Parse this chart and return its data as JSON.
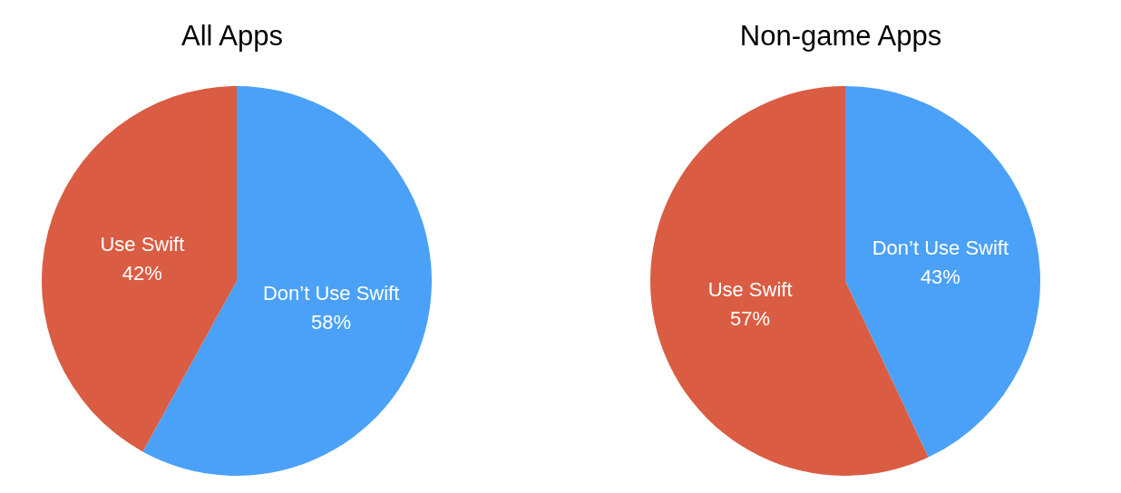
{
  "chart_data": [
    {
      "type": "pie",
      "title": "All Apps",
      "categories": [
        "Don’t Use Swift",
        "Use Swift"
      ],
      "values": [
        58,
        42
      ],
      "value_labels": [
        "58%",
        "42%"
      ],
      "colors": [
        "#4ba1f7",
        "#da5c43"
      ],
      "legend": false
    },
    {
      "type": "pie",
      "title": "Non-game Apps",
      "categories": [
        "Don’t Use Swift",
        "Use Swift"
      ],
      "values": [
        43,
        57
      ],
      "value_labels": [
        "43%",
        "57%"
      ],
      "colors": [
        "#4ba1f7",
        "#da5c43"
      ],
      "legend": false
    }
  ]
}
